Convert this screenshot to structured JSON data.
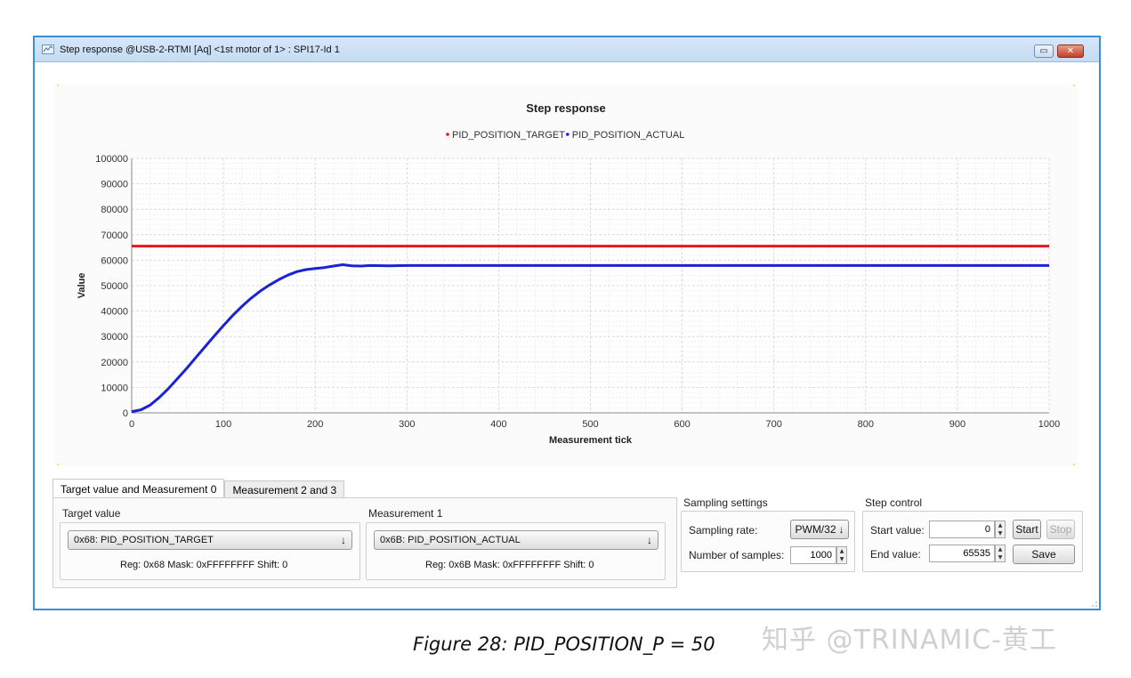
{
  "window": {
    "title": "Step response @USB-2-RTMI [Aq] <1st motor of 1> : SPI17-Id 1",
    "restore_icon": "restore-icon",
    "close_icon": "close-icon"
  },
  "chart_data": {
    "type": "line",
    "title": "Step response",
    "xlabel": "Measurement tick",
    "ylabel": "Value",
    "xlim": [
      0,
      1000
    ],
    "ylim": [
      0,
      100000
    ],
    "x_ticks": [
      "0",
      "100",
      "200",
      "300",
      "400",
      "500",
      "600",
      "700",
      "800",
      "900",
      "1000"
    ],
    "y_ticks": [
      "0",
      "10000",
      "20000",
      "30000",
      "40000",
      "50000",
      "60000",
      "70000",
      "80000",
      "90000",
      "100000"
    ],
    "grid": true,
    "legend_position": "top-center",
    "series": [
      {
        "name": "PID_POSITION_TARGET",
        "color": "#e8161b",
        "x": [
          0,
          1000
        ],
        "y": [
          65535,
          65535
        ]
      },
      {
        "name": "PID_POSITION_ACTUAL",
        "color": "#1a22d6",
        "x": [
          0,
          10,
          20,
          30,
          40,
          50,
          60,
          70,
          80,
          90,
          100,
          110,
          120,
          130,
          140,
          150,
          160,
          170,
          180,
          190,
          200,
          210,
          220,
          230,
          240,
          250,
          260,
          280,
          300,
          400,
          500,
          600,
          700,
          800,
          900,
          1000
        ],
        "y": [
          500,
          1200,
          3000,
          6000,
          9500,
          13500,
          17500,
          21800,
          26000,
          30200,
          34300,
          38200,
          41800,
          45000,
          47800,
          50200,
          52300,
          54100,
          55500,
          56300,
          56700,
          57100,
          57700,
          58200,
          57800,
          57700,
          57900,
          57800,
          57900,
          57900,
          57900,
          57900,
          57900,
          57900,
          57900,
          57900
        ]
      }
    ]
  },
  "tabs": [
    {
      "label": "Target value and Measurement 0",
      "active": true
    },
    {
      "label": "Measurement 2 and 3",
      "active": false
    }
  ],
  "target_value": {
    "group_label": "Target value",
    "selected": "0x68: PID_POSITION_TARGET",
    "reg_info": "Reg: 0x68   Mask: 0xFFFFFFFF   Shift: 0"
  },
  "measurement1": {
    "group_label": "Measurement 1",
    "selected": "0x6B: PID_POSITION_ACTUAL",
    "reg_info": "Reg: 0x6B   Mask: 0xFFFFFFFF   Shift: 0"
  },
  "sampling": {
    "group_label": "Sampling settings",
    "rate_label": "Sampling rate:",
    "rate_value": "PWM/32",
    "samples_label": "Number of samples:",
    "samples_value": "1000"
  },
  "step_control": {
    "group_label": "Step control",
    "start_label": "Start value:",
    "start_value": "0",
    "end_label": "End value:",
    "end_value": "65535",
    "start_button": "Start",
    "stop_button": "Stop",
    "save_button": "Save"
  },
  "caption": "Figure 28: PID_POSITION_P = 50",
  "watermark": "知乎 @TRINAMIC-黄工"
}
